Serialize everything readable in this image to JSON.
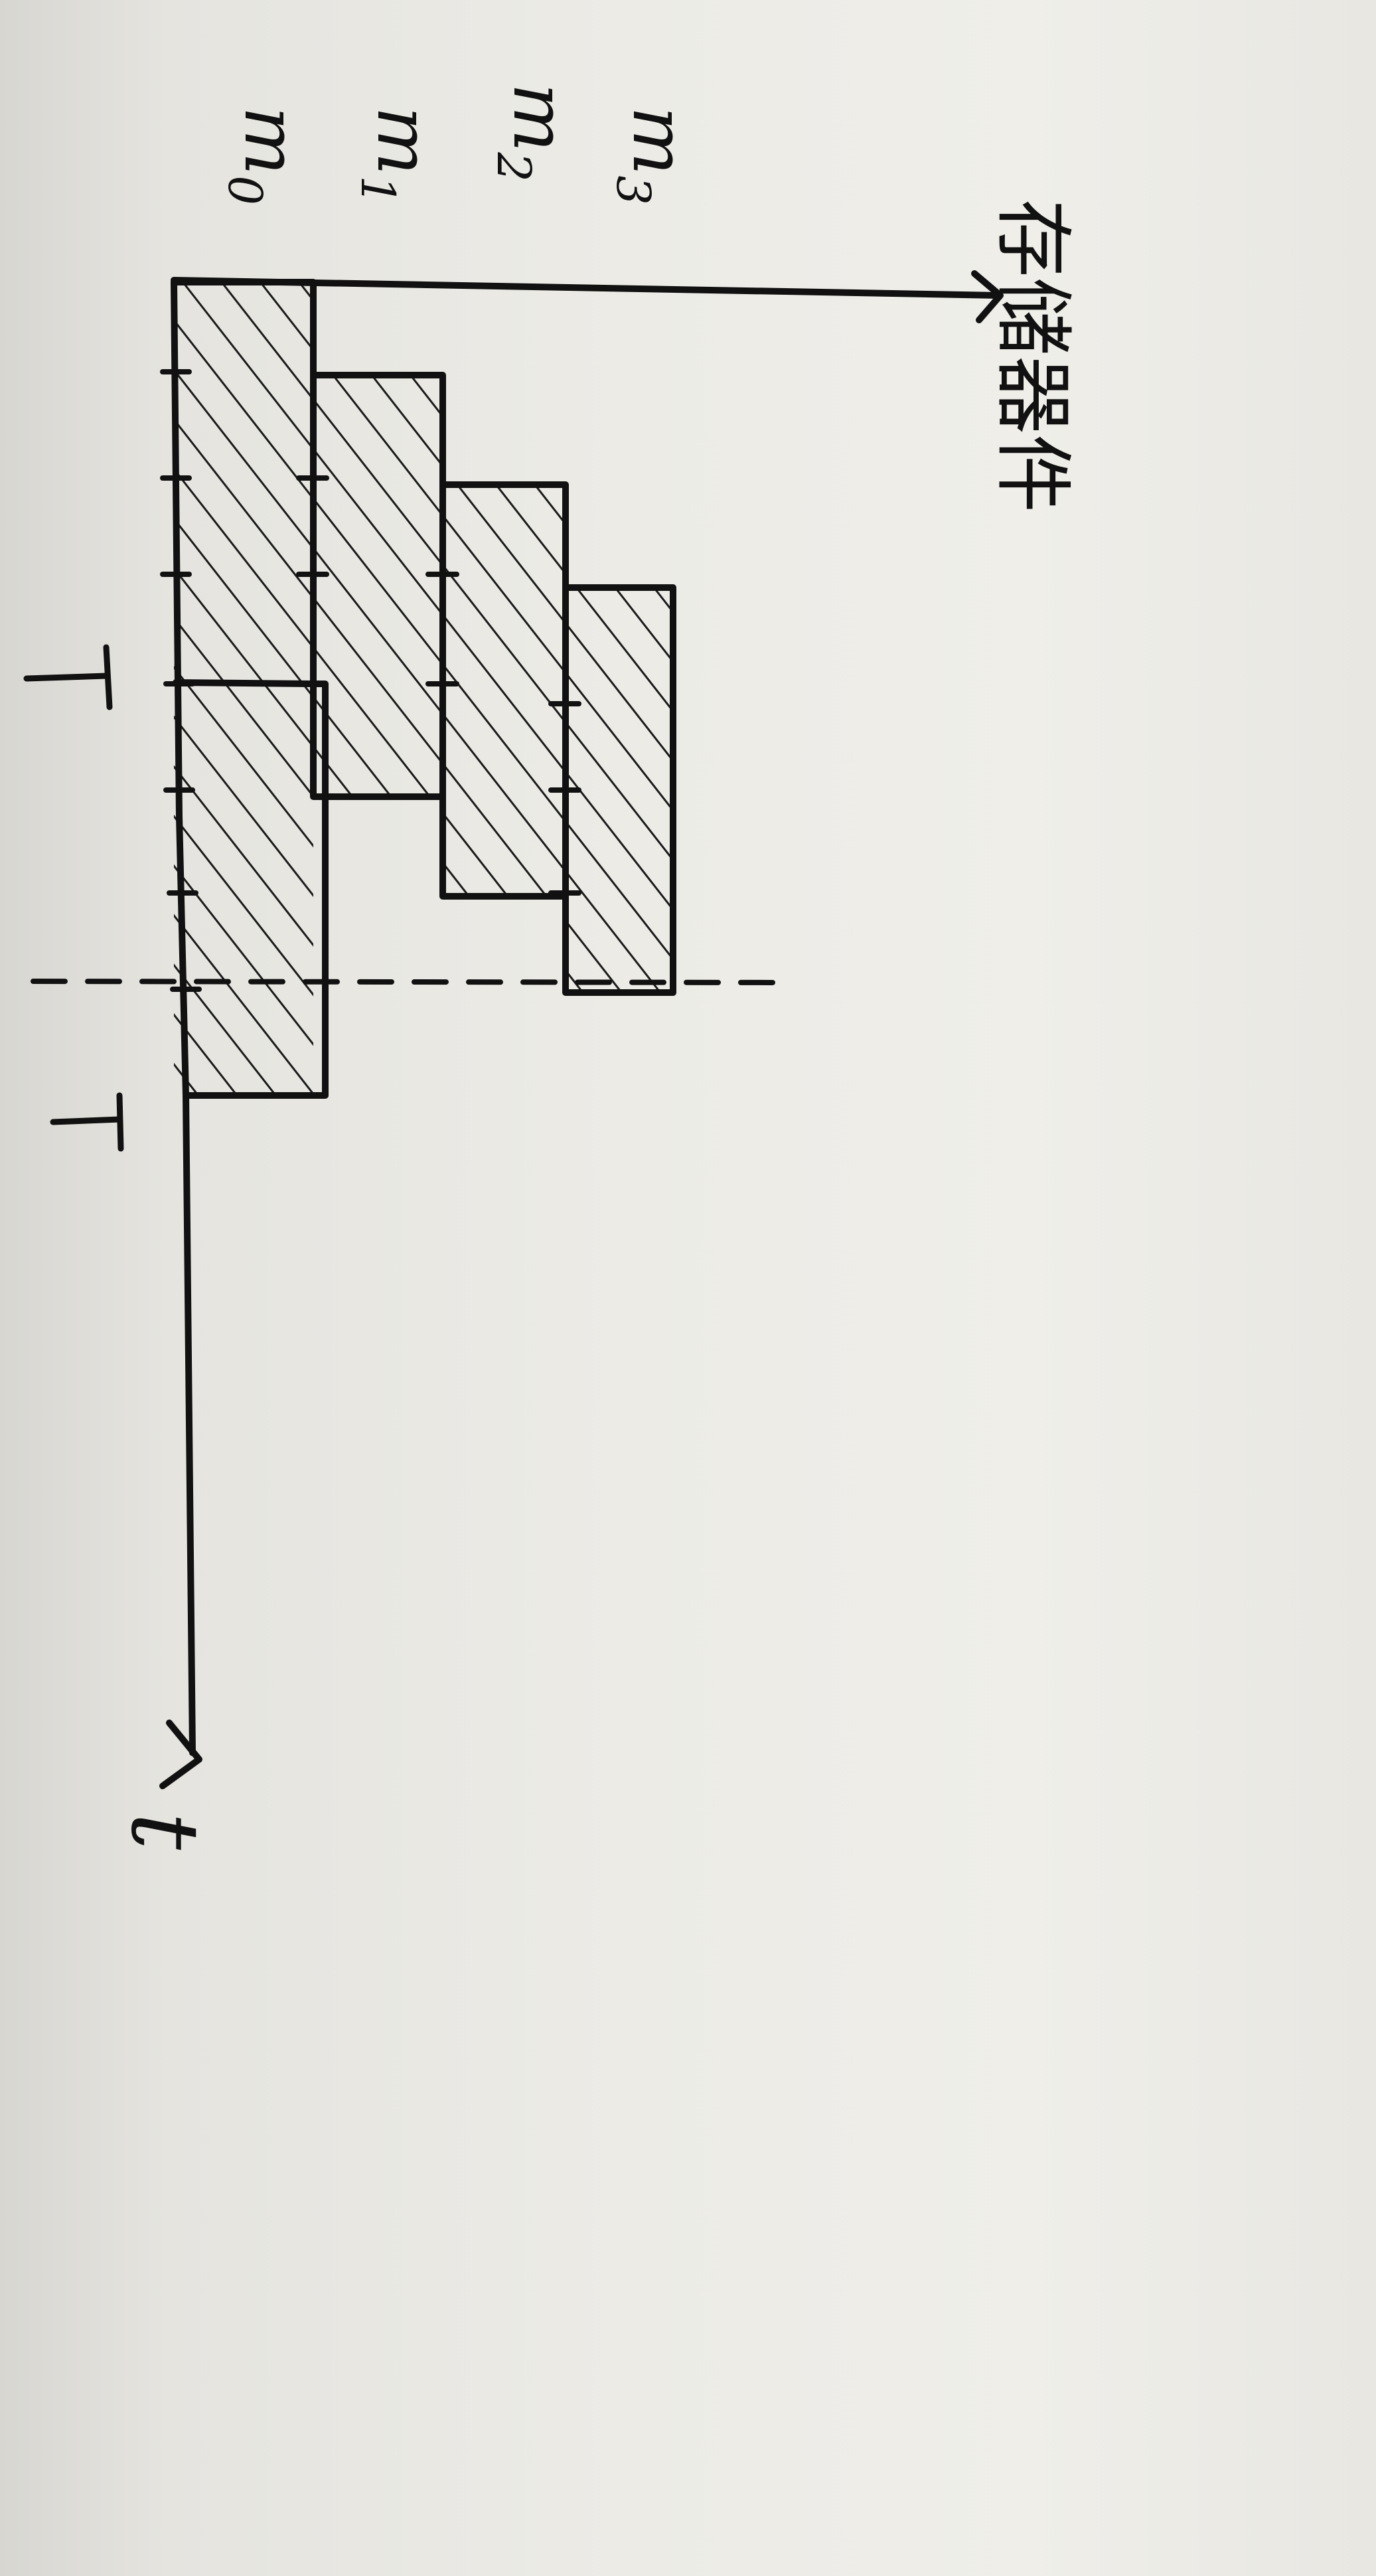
{
  "diagram": {
    "memory_axis_label": "存储器件",
    "time_axis_label": "t",
    "period_mark_label": "T",
    "blocks": [
      {
        "label": "m0",
        "main": "m",
        "sub": "0"
      },
      {
        "label": "m1",
        "main": "m",
        "sub": "1"
      },
      {
        "label": "m2",
        "main": "m",
        "sub": "2"
      },
      {
        "label": "m3",
        "main": "m",
        "sub": "3"
      }
    ]
  }
}
